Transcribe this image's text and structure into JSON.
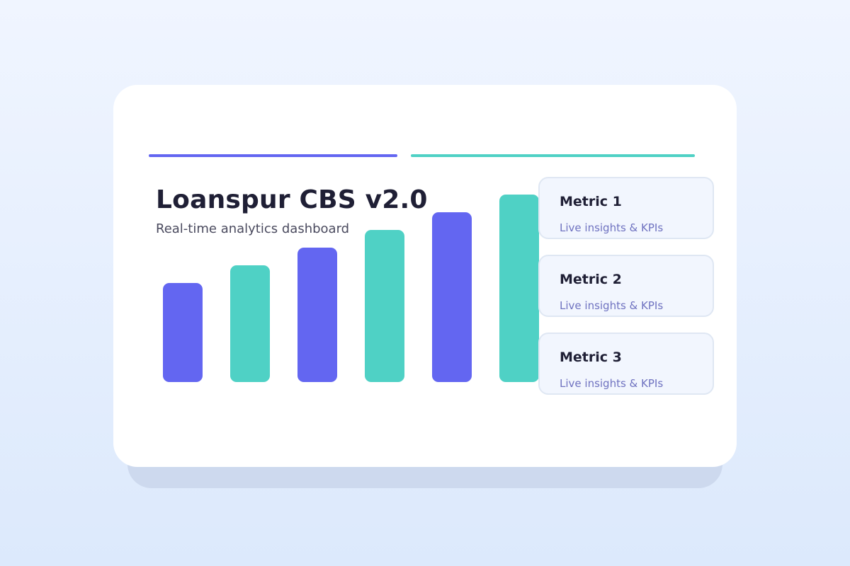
{
  "header": {
    "title": "Loanspur CBS v2.0",
    "subtitle": "Real-time analytics dashboard"
  },
  "colors": {
    "primary": "#6366f1",
    "secondary": "#4fd1c5"
  },
  "bars": [
    {
      "value": 140,
      "color": "primary"
    },
    {
      "value": 165,
      "color": "secondary"
    },
    {
      "value": 190,
      "color": "primary"
    },
    {
      "value": 215,
      "color": "secondary"
    },
    {
      "value": 240,
      "color": "primary"
    },
    {
      "value": 265,
      "color": "secondary"
    }
  ],
  "metrics": [
    {
      "title": "Metric 1",
      "subtitle": "Live insights & KPIs"
    },
    {
      "title": "Metric 2",
      "subtitle": "Live insights & KPIs"
    },
    {
      "title": "Metric 3",
      "subtitle": "Live insights & KPIs"
    }
  ]
}
